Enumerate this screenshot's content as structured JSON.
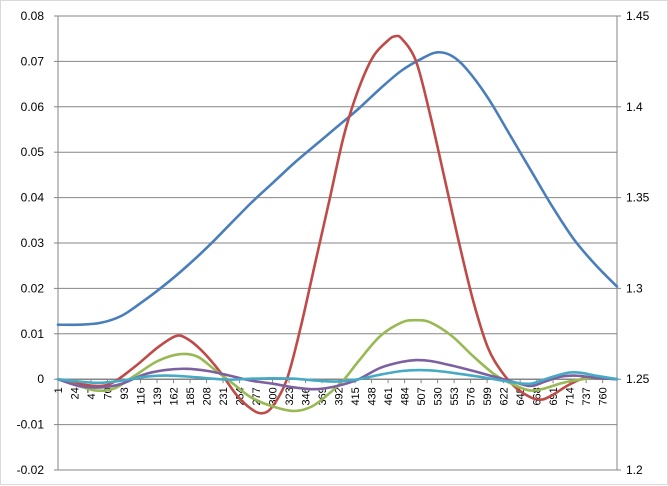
{
  "chart_data": {
    "type": "line",
    "title": "",
    "xlabel": "",
    "ylabel": "",
    "grid": true,
    "legend": "none",
    "x_categories": [
      "1",
      "24",
      "47",
      "70",
      "93",
      "116",
      "139",
      "162",
      "185",
      "208",
      "231",
      "254",
      "277",
      "300",
      "323",
      "346",
      "369",
      "392",
      "415",
      "438",
      "461",
      "484",
      "507",
      "530",
      "553",
      "576",
      "599",
      "622",
      "645",
      "668",
      "691",
      "714",
      "737",
      "760"
    ],
    "x_range": [
      1,
      780
    ],
    "y_left": {
      "range": [
        -0.02,
        0.08
      ],
      "ticks": [
        -0.02,
        -0.01,
        0,
        0.01,
        0.02,
        0.03,
        0.04,
        0.05,
        0.06,
        0.07,
        0.08
      ],
      "tick_labels": [
        "-0.02",
        "-0.01",
        "0",
        "0.01",
        "0.02",
        "0.03",
        "0.04",
        "0.05",
        "0.06",
        "0.07",
        "0.08"
      ]
    },
    "y_right": {
      "range": [
        1.2,
        1.45
      ],
      "ticks": [
        1.2,
        1.25,
        1.3,
        1.35,
        1.4,
        1.45
      ],
      "tick_labels": [
        "1.2",
        "1.25",
        "1.3",
        "1.35",
        "1.4",
        "1.45"
      ]
    },
    "series": [
      {
        "axis": "right",
        "color": "#4a7ebb",
        "points": [
          [
            1,
            1.28
          ],
          [
            30,
            1.28
          ],
          [
            60,
            1.281
          ],
          [
            90,
            1.285
          ],
          [
            120,
            1.293
          ],
          [
            150,
            1.302
          ],
          [
            180,
            1.312
          ],
          [
            210,
            1.323
          ],
          [
            240,
            1.335
          ],
          [
            270,
            1.347
          ],
          [
            300,
            1.358
          ],
          [
            330,
            1.369
          ],
          [
            360,
            1.379
          ],
          [
            390,
            1.389
          ],
          [
            420,
            1.399
          ],
          [
            450,
            1.41
          ],
          [
            480,
            1.42
          ],
          [
            510,
            1.427
          ],
          [
            530,
            1.43
          ],
          [
            550,
            1.428
          ],
          [
            570,
            1.421
          ],
          [
            600,
            1.405
          ],
          [
            630,
            1.385
          ],
          [
            660,
            1.365
          ],
          [
            690,
            1.345
          ],
          [
            720,
            1.327
          ],
          [
            750,
            1.313
          ],
          [
            780,
            1.301
          ]
        ]
      },
      {
        "axis": "left",
        "color": "#be4b48",
        "points": [
          [
            1,
            0
          ],
          [
            30,
            -0.001
          ],
          [
            60,
            -0.0015
          ],
          [
            80,
            -0.0005
          ],
          [
            110,
            0.003
          ],
          [
            140,
            0.007
          ],
          [
            165,
            0.0095
          ],
          [
            180,
            0.009
          ],
          [
            200,
            0.0065
          ],
          [
            225,
            0.002
          ],
          [
            250,
            -0.0035
          ],
          [
            270,
            -0.0065
          ],
          [
            285,
            -0.0075
          ],
          [
            300,
            -0.006
          ],
          [
            320,
            0
          ],
          [
            340,
            0.012
          ],
          [
            360,
            0.026
          ],
          [
            380,
            0.04
          ],
          [
            400,
            0.054
          ],
          [
            420,
            0.064
          ],
          [
            440,
            0.071
          ],
          [
            460,
            0.0745
          ],
          [
            470,
            0.0755
          ],
          [
            480,
            0.075
          ],
          [
            500,
            0.07
          ],
          [
            520,
            0.058
          ],
          [
            540,
            0.044
          ],
          [
            560,
            0.03
          ],
          [
            580,
            0.017
          ],
          [
            600,
            0.007
          ],
          [
            620,
            0.0015
          ],
          [
            640,
            -0.002
          ],
          [
            660,
            -0.004
          ],
          [
            675,
            -0.0045
          ],
          [
            690,
            -0.0035
          ],
          [
            710,
            -0.0015
          ],
          [
            730,
            0
          ],
          [
            750,
            0.0005
          ],
          [
            780,
            0
          ]
        ]
      },
      {
        "axis": "left",
        "color": "#98b954",
        "points": [
          [
            1,
            0
          ],
          [
            30,
            -0.0015
          ],
          [
            55,
            -0.0025
          ],
          [
            80,
            -0.002
          ],
          [
            110,
            0.001
          ],
          [
            140,
            0.004
          ],
          [
            170,
            0.0055
          ],
          [
            195,
            0.005
          ],
          [
            220,
            0.002
          ],
          [
            245,
            -0.001
          ],
          [
            270,
            -0.004
          ],
          [
            300,
            -0.006
          ],
          [
            330,
            -0.007
          ],
          [
            355,
            -0.006
          ],
          [
            380,
            -0.003
          ],
          [
            400,
            0
          ],
          [
            420,
            0.004
          ],
          [
            450,
            0.0095
          ],
          [
            480,
            0.0125
          ],
          [
            500,
            0.013
          ],
          [
            520,
            0.0125
          ],
          [
            550,
            0.0095
          ],
          [
            580,
            0.005
          ],
          [
            610,
            0.001
          ],
          [
            640,
            -0.0015
          ],
          [
            660,
            -0.0025
          ],
          [
            680,
            -0.002
          ],
          [
            700,
            -0.001
          ],
          [
            720,
            -0.0003
          ],
          [
            750,
            0.0003
          ],
          [
            780,
            0
          ]
        ]
      },
      {
        "axis": "left",
        "color": "#7d60a0",
        "points": [
          [
            1,
            0
          ],
          [
            30,
            -0.0015
          ],
          [
            60,
            -0.0018
          ],
          [
            90,
            -0.001
          ],
          [
            120,
            0.001
          ],
          [
            150,
            0.002
          ],
          [
            180,
            0.0023
          ],
          [
            210,
            0.0018
          ],
          [
            240,
            0.0008
          ],
          [
            270,
            -0.0003
          ],
          [
            300,
            -0.001
          ],
          [
            330,
            -0.0018
          ],
          [
            360,
            -0.0022
          ],
          [
            390,
            -0.0015
          ],
          [
            420,
            0
          ],
          [
            450,
            0.0025
          ],
          [
            480,
            0.0038
          ],
          [
            500,
            0.0042
          ],
          [
            520,
            0.004
          ],
          [
            550,
            0.003
          ],
          [
            580,
            0.0018
          ],
          [
            610,
            0.0005
          ],
          [
            640,
            -0.0008
          ],
          [
            660,
            -0.0015
          ],
          [
            680,
            -0.0005
          ],
          [
            700,
            0.0005
          ],
          [
            720,
            0.0008
          ],
          [
            740,
            0.0005
          ],
          [
            760,
            0.0002
          ],
          [
            780,
            0
          ]
        ]
      },
      {
        "axis": "left",
        "color": "#46aac5",
        "points": [
          [
            1,
            0
          ],
          [
            30,
            -0.0005
          ],
          [
            60,
            -0.0008
          ],
          [
            90,
            -0.0003
          ],
          [
            120,
            0.0005
          ],
          [
            150,
            0.0008
          ],
          [
            180,
            0.0006
          ],
          [
            210,
            0.0002
          ],
          [
            240,
            -0.0001
          ],
          [
            270,
            0.0001
          ],
          [
            300,
            0.0002
          ],
          [
            330,
            0.0001
          ],
          [
            360,
            -0.0003
          ],
          [
            390,
            -0.0005
          ],
          [
            420,
            0
          ],
          [
            450,
            0.001
          ],
          [
            480,
            0.0018
          ],
          [
            505,
            0.002
          ],
          [
            530,
            0.0018
          ],
          [
            560,
            0.0012
          ],
          [
            590,
            0.0005
          ],
          [
            620,
            -0.0003
          ],
          [
            640,
            -0.0008
          ],
          [
            660,
            -0.001
          ],
          [
            680,
            0
          ],
          [
            700,
            0.001
          ],
          [
            715,
            0.0015
          ],
          [
            730,
            0.0014
          ],
          [
            750,
            0.0008
          ],
          [
            780,
            0
          ]
        ]
      }
    ]
  }
}
